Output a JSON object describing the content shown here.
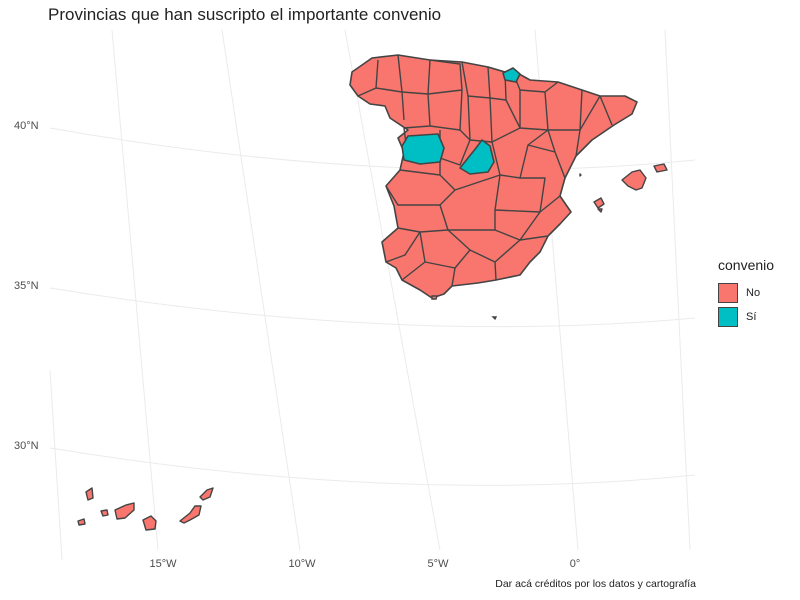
{
  "title": "Provincias que han suscripto el importante convenio",
  "caption": "Dar acá créditos por los datos y cartografía",
  "colors": {
    "no": "#F8766D",
    "si": "#00BFC4",
    "border": "#444444",
    "grid": "#ebebeb"
  },
  "axes": {
    "y_labels": [
      "40°N",
      "35°N",
      "30°N"
    ],
    "x_labels": [
      "15°W",
      "10°W",
      "5°W",
      "0°"
    ]
  },
  "legend": {
    "title": "convenio",
    "items": [
      {
        "label": "No",
        "value": "No"
      },
      {
        "label": "Sí",
        "value": "Sí"
      }
    ]
  }
}
